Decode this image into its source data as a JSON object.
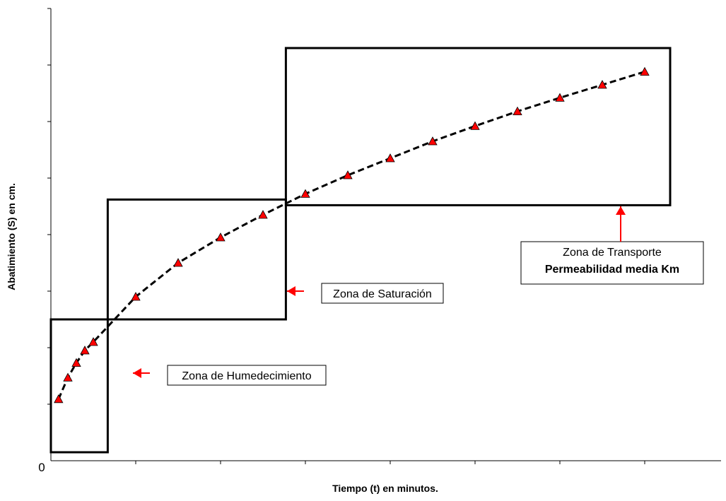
{
  "chart_data": {
    "type": "line",
    "title": "",
    "xlabel": "Tiempo (t) en minutos.",
    "ylabel": "Abatimiento (S) en cm.",
    "origin_label": "0",
    "xlim": [
      0,
      7.9
    ],
    "ylim": [
      0,
      8
    ],
    "x_major_ticks": [
      1,
      2,
      3,
      4,
      5,
      6,
      7
    ],
    "y_major_ticks": [
      1,
      2,
      3,
      4,
      5,
      6,
      7,
      8
    ],
    "tick_labels_shown": false,
    "grid": false,
    "legend": "none",
    "series": [
      {
        "marker": "triangle",
        "marker_color": "#ff0000",
        "line_style": "dashed",
        "line_color": "#000000",
        "x": [
          0.09,
          0.2,
          0.3,
          0.4,
          0.5,
          1.0,
          1.5,
          2.0,
          2.5,
          3.0,
          3.5,
          4.0,
          4.5,
          5.0,
          5.5,
          6.0,
          6.5,
          7.0
        ],
        "y": [
          1.09,
          1.47,
          1.73,
          1.95,
          2.1,
          2.9,
          3.5,
          3.95,
          4.35,
          4.72,
          5.05,
          5.35,
          5.65,
          5.92,
          6.18,
          6.42,
          6.65,
          6.88
        ]
      }
    ],
    "zones": [
      {
        "x": [
          0,
          0.67
        ],
        "y": [
          0.15,
          2.5
        ]
      },
      {
        "x": [
          0.67,
          2.77
        ],
        "y": [
          2.5,
          4.62
        ]
      },
      {
        "x": [
          2.77,
          7.3
        ],
        "y": [
          4.52,
          7.3
        ]
      }
    ],
    "annotations": [
      {
        "lines": [
          "Zona de Humedecimiento"
        ],
        "bold": [
          false
        ]
      },
      {
        "lines": [
          "Zona de Saturación"
        ],
        "bold": [
          false
        ]
      },
      {
        "lines": [
          "Zona de Transporte",
          "Permeabilidad media  Km"
        ],
        "bold": [
          false,
          true
        ]
      }
    ]
  }
}
